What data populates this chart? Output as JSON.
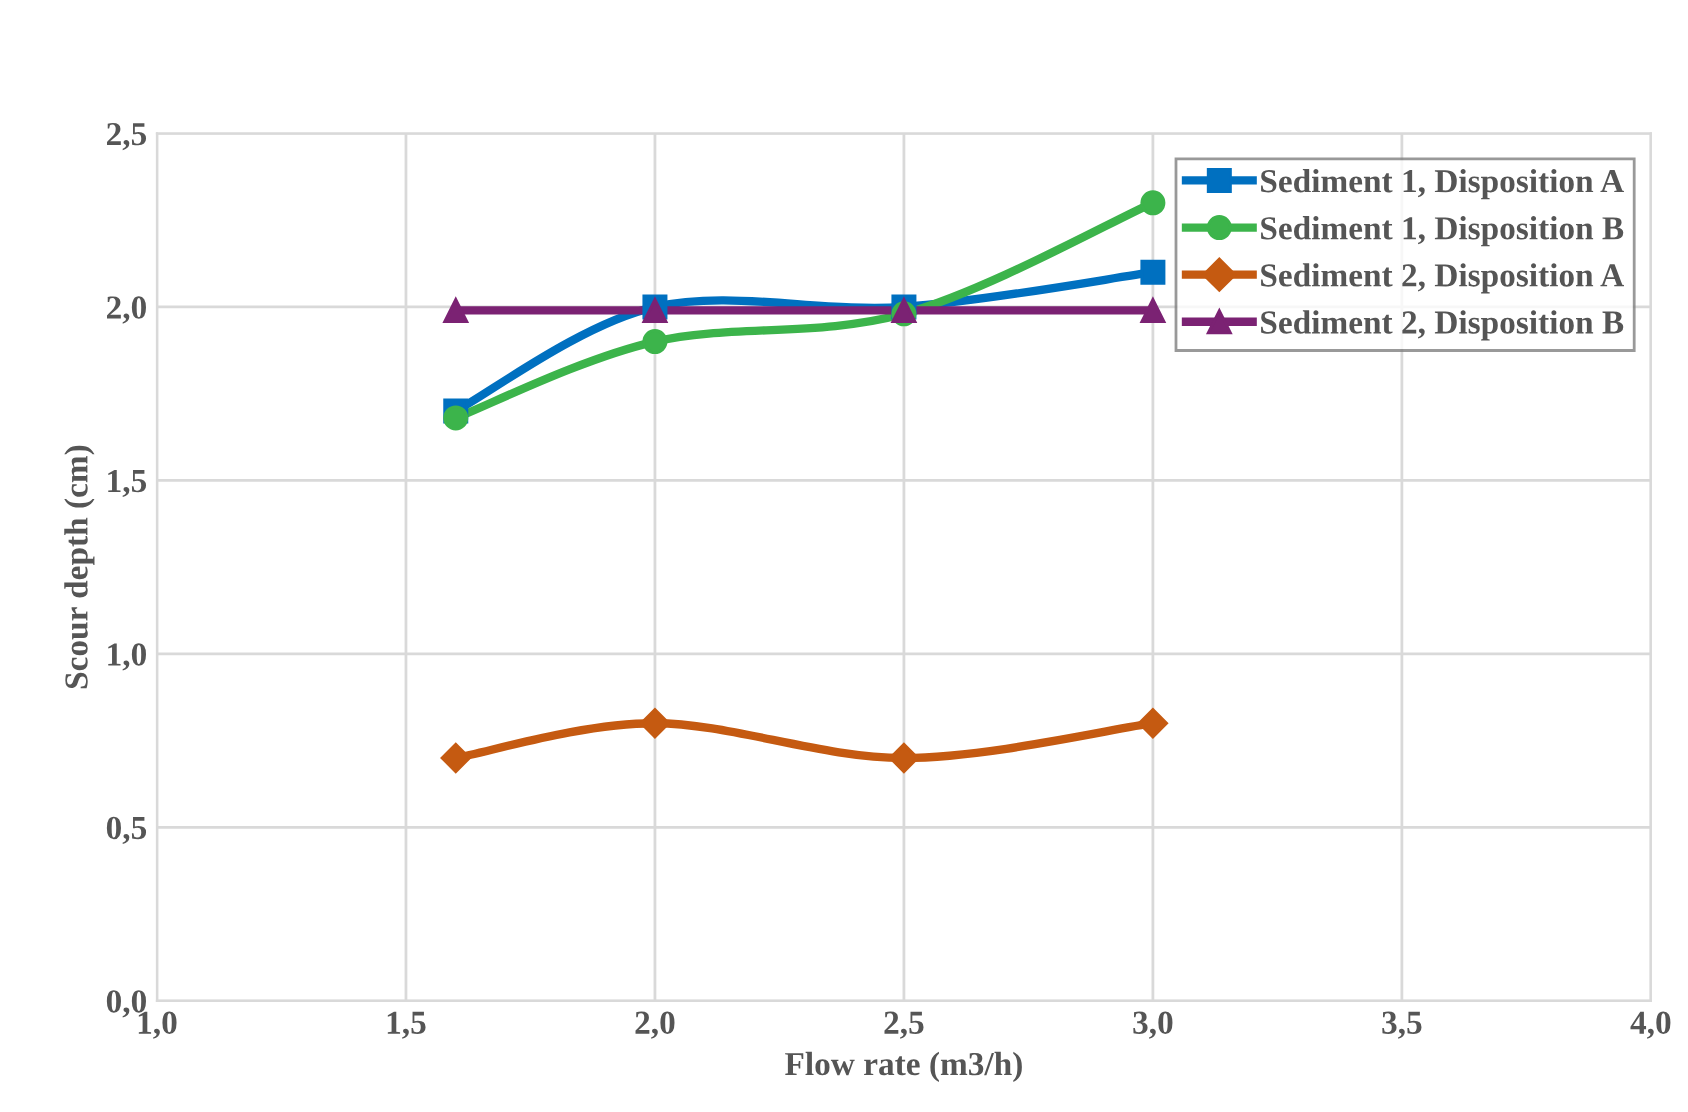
{
  "chart_data": {
    "type": "line",
    "xlabel": "Flow rate (m3/h)",
    "ylabel": "Scour depth (cm)",
    "xlim": [
      1.0,
      4.0
    ],
    "xticks": [
      {
        "value": 1.0,
        "label": "1,0"
      },
      {
        "value": 1.5,
        "label": "1,5"
      },
      {
        "value": 2.0,
        "label": "2,0"
      },
      {
        "value": 2.5,
        "label": "2,5"
      },
      {
        "value": 3.0,
        "label": "3,0"
      },
      {
        "value": 3.5,
        "label": "3,5"
      },
      {
        "value": 4.0,
        "label": "4,0"
      }
    ],
    "ylim": [
      0.0,
      2.5
    ],
    "yticks": [
      {
        "value": 0.0,
        "label": "0,0"
      },
      {
        "value": 0.5,
        "label": "0,5"
      },
      {
        "value": 1.0,
        "label": "1,0"
      },
      {
        "value": 1.5,
        "label": "1,5"
      },
      {
        "value": 2.0,
        "label": "2,0"
      },
      {
        "value": 2.5,
        "label": "2,5"
      }
    ],
    "grid": true,
    "legend": "top right",
    "line_style": "solid",
    "series": [
      {
        "name": "Sediment 1, Disposition A",
        "color": "#0070c0",
        "marker": "square",
        "x": [
          1.6,
          2.0,
          2.5,
          3.0
        ],
        "values": [
          1.7,
          2.0,
          2.0,
          2.1
        ]
      },
      {
        "name": "Sediment 1, Disposition B",
        "color": "#3cb44b",
        "marker": "circle",
        "x": [
          1.6,
          2.0,
          2.5,
          3.0
        ],
        "values": [
          1.68,
          1.9,
          1.98,
          2.3
        ]
      },
      {
        "name": "Sediment 2, Disposition A",
        "color": "#c55a11",
        "marker": "diamond",
        "x": [
          1.6,
          2.0,
          2.5,
          3.0
        ],
        "values": [
          0.7,
          0.8,
          0.7,
          0.8
        ]
      },
      {
        "name": "Sediment 2, Disposition B",
        "color": "#7b2273",
        "marker": "triangle",
        "x": [
          1.6,
          2.0,
          2.5,
          3.0
        ],
        "values": [
          1.99,
          1.99,
          1.99,
          1.99
        ]
      }
    ]
  }
}
